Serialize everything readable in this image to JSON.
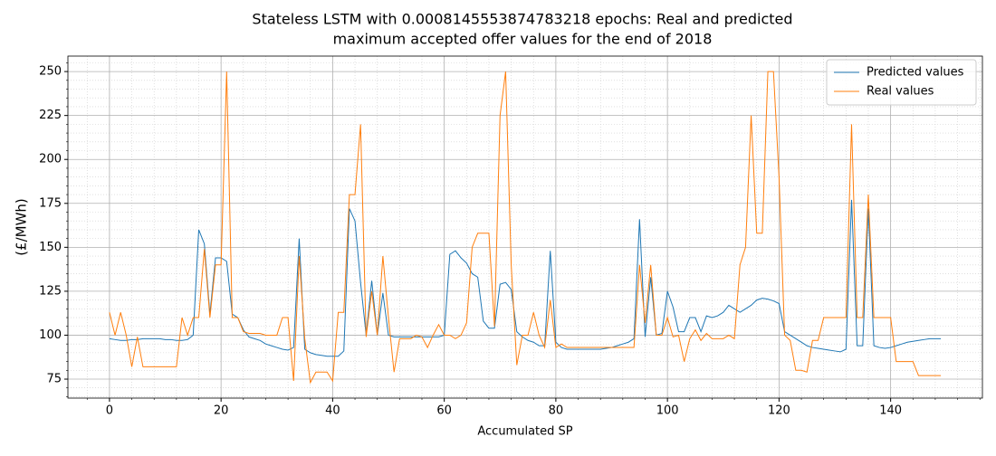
{
  "chart_data": {
    "type": "line",
    "title": [
      "Stateless LSTM with 0.0008145553874783218 epochs: Real and predicted",
      "maximum accepted offer values for the end of 2018"
    ],
    "xlabel": "Accumulated SP",
    "ylabel": "(£/MWh)",
    "x": [
      0,
      1,
      2,
      3,
      4,
      5,
      6,
      7,
      8,
      9,
      10,
      11,
      12,
      13,
      14,
      15,
      16,
      17,
      18,
      19,
      20,
      21,
      22,
      23,
      24,
      25,
      26,
      27,
      28,
      29,
      30,
      31,
      32,
      33,
      34,
      35,
      36,
      37,
      38,
      39,
      40,
      41,
      42,
      43,
      44,
      45,
      46,
      47,
      48,
      49,
      50,
      51,
      52,
      53,
      54,
      55,
      56,
      57,
      58,
      59,
      60,
      61,
      62,
      63,
      64,
      65,
      66,
      67,
      68,
      69,
      70,
      71,
      72,
      73,
      74,
      75,
      76,
      77,
      78,
      79,
      80,
      81,
      82,
      83,
      84,
      85,
      86,
      87,
      88,
      89,
      90,
      91,
      92,
      93,
      94,
      95,
      96,
      97,
      98,
      99,
      100,
      101,
      102,
      103,
      104,
      105,
      106,
      107,
      108,
      109,
      110,
      111,
      112,
      113,
      114,
      115,
      116,
      117,
      118,
      119,
      120,
      121,
      122,
      123,
      124,
      125,
      126,
      127,
      128,
      129,
      130,
      131,
      132,
      133,
      134,
      135,
      136,
      137,
      138,
      139,
      140,
      141,
      142,
      143,
      144,
      145,
      146,
      147,
      148,
      149
    ],
    "series": [
      {
        "name": "Predicted values",
        "color": "#1f77b4",
        "values": [
          98,
          97.5,
          97,
          97,
          97.5,
          97.5,
          98,
          98,
          98,
          98,
          97.5,
          97.5,
          97,
          97,
          97.5,
          100,
          160,
          152,
          112,
          144,
          144,
          142,
          112,
          110,
          103,
          99,
          98,
          97,
          95,
          94,
          93,
          92,
          91.5,
          93,
          155,
          92,
          90,
          89,
          88.5,
          88,
          88,
          88,
          91,
          172,
          165,
          130,
          100,
          131,
          100,
          124,
          100,
          99,
          99,
          99,
          99,
          99,
          99,
          99,
          99,
          99,
          100,
          146,
          148,
          144,
          141,
          135,
          133,
          108,
          104,
          104,
          129,
          130,
          126,
          102,
          99,
          97,
          96,
          94,
          94,
          148,
          96,
          93,
          92,
          92,
          92,
          92,
          92,
          92,
          92,
          92.5,
          93,
          94,
          95,
          96,
          98,
          166,
          99,
          133,
          100,
          101,
          125,
          116,
          102,
          102,
          110,
          110,
          102,
          111,
          110,
          111,
          113,
          117,
          115,
          113,
          115,
          117,
          120,
          121,
          120.5,
          119.5,
          118,
          102,
          100,
          98,
          96,
          94,
          93,
          92.5,
          92,
          91.5,
          91,
          90.5,
          92,
          177,
          94,
          94,
          172,
          94,
          93,
          92.5,
          93,
          94,
          95,
          96,
          96.5,
          97,
          97.5,
          98,
          98,
          98
        ]
      },
      {
        "name": "Real values",
        "color": "#ff7f0e",
        "values": [
          113,
          100,
          113,
          100,
          82,
          99,
          82,
          82,
          82,
          82,
          82,
          82,
          82,
          110,
          100,
          110,
          110,
          149,
          110,
          140,
          140,
          250,
          110,
          110,
          102,
          101,
          101,
          101,
          100,
          100,
          100,
          110,
          110,
          74,
          145,
          98,
          73,
          79,
          79,
          79,
          74,
          113,
          113,
          180,
          180,
          220,
          99,
          125,
          100,
          145,
          110,
          79,
          98,
          98,
          98,
          100,
          99,
          93,
          100,
          106,
          100,
          100,
          98,
          100,
          107,
          150,
          158,
          158,
          158,
          105,
          225,
          250,
          140,
          83,
          100,
          100,
          113,
          100,
          93,
          120,
          93,
          95,
          93,
          93,
          93,
          93,
          93,
          93,
          93,
          93,
          93,
          93,
          93,
          93,
          93,
          140,
          107,
          140,
          100,
          100,
          110,
          99,
          100,
          85,
          98,
          103,
          97,
          101,
          98,
          98,
          98,
          100,
          98,
          140,
          150,
          225,
          158,
          158,
          250,
          250,
          190,
          100,
          97,
          80,
          80,
          79,
          97,
          97,
          110,
          110,
          110,
          110,
          110,
          220,
          110,
          110,
          180,
          110,
          110,
          110,
          110,
          85,
          85,
          85,
          85,
          77,
          77,
          77,
          77,
          77
        ]
      }
    ],
    "xlim": [
      -7.45,
      156.45
    ],
    "ylim": [
      64.2,
      258.8
    ],
    "xticks": [
      0,
      20,
      40,
      60,
      80,
      100,
      120,
      140
    ],
    "yticks": [
      75,
      100,
      125,
      150,
      175,
      200,
      225,
      250
    ],
    "xminorticks": [
      -4,
      4,
      8,
      12,
      16,
      24,
      28,
      32,
      36,
      44,
      48,
      52,
      56,
      64,
      68,
      72,
      76,
      84,
      88,
      92,
      96,
      104,
      108,
      112,
      116,
      124,
      128,
      132,
      136,
      144,
      148,
      152,
      156
    ],
    "yminorticks": [
      65,
      70,
      80,
      85,
      90,
      95,
      105,
      110,
      115,
      120,
      130,
      135,
      140,
      145,
      155,
      160,
      165,
      170,
      180,
      185,
      190,
      195,
      205,
      210,
      215,
      220,
      230,
      235,
      240,
      245,
      255
    ],
    "grid": true,
    "minor_grid": true,
    "legend": "upper right"
  }
}
